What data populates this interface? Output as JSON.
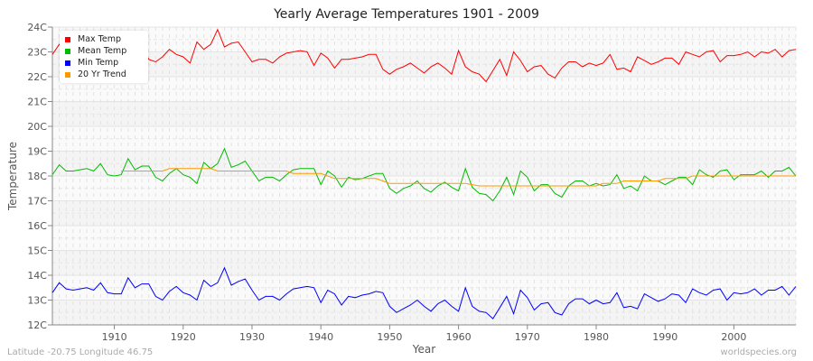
{
  "chart_data": {
    "type": "line",
    "title": "Yearly Average Temperatures 1901 - 2009",
    "xlabel": "Year",
    "ylabel": "Temperature",
    "xlim": [
      1901,
      2009
    ],
    "ylim": [
      12,
      24
    ],
    "x_ticks": [
      1910,
      1920,
      1930,
      1940,
      1950,
      1960,
      1970,
      1980,
      1990,
      2000
    ],
    "y_ticks": [
      "12C",
      "13C",
      "14C",
      "15C",
      "16C",
      "17C",
      "18C",
      "19C",
      "20C",
      "21C",
      "22C",
      "23C",
      "24C"
    ],
    "grid": true,
    "legend_position": "top-left",
    "x_start": 1901,
    "series": [
      {
        "name": "Max Temp",
        "color": "#ff0000",
        "values": [
          22.9,
          23.3,
          23.0,
          23.1,
          22.9,
          23.0,
          23.2,
          22.9,
          23.0,
          22.8,
          23.0,
          23.1,
          23.2,
          23.2,
          22.7,
          22.6,
          22.8,
          23.1,
          22.9,
          22.8,
          22.55,
          23.4,
          23.1,
          23.3,
          23.9,
          23.2,
          23.35,
          23.4,
          23.0,
          22.6,
          22.7,
          22.7,
          22.55,
          22.8,
          22.95,
          23.0,
          23.05,
          23.0,
          22.45,
          22.95,
          22.75,
          22.35,
          22.7,
          22.7,
          22.75,
          22.8,
          22.9,
          22.9,
          22.3,
          22.1,
          22.3,
          22.4,
          22.55,
          22.35,
          22.15,
          22.4,
          22.55,
          22.35,
          22.1,
          23.05,
          22.4,
          22.2,
          22.1,
          21.8,
          22.25,
          22.7,
          22.05,
          23.0,
          22.65,
          22.2,
          22.4,
          22.45,
          22.1,
          21.95,
          22.35,
          22.6,
          22.6,
          22.4,
          22.55,
          22.45,
          22.55,
          22.9,
          22.3,
          22.35,
          22.2,
          22.8,
          22.65,
          22.5,
          22.6,
          22.75,
          22.75,
          22.5,
          23.0,
          22.9,
          22.8,
          23.0,
          23.05,
          22.6,
          22.85,
          22.85,
          22.9,
          23.0,
          22.8,
          23.0,
          22.95,
          23.1,
          22.8,
          23.05,
          23.1
        ]
      },
      {
        "name": "Mean Temp",
        "color": "#00bb00",
        "values": [
          18.05,
          18.45,
          18.2,
          18.2,
          18.25,
          18.3,
          18.2,
          18.5,
          18.05,
          18.0,
          18.05,
          18.7,
          18.25,
          18.4,
          18.4,
          17.95,
          17.8,
          18.1,
          18.3,
          18.05,
          17.95,
          17.7,
          18.55,
          18.3,
          18.5,
          19.1,
          18.35,
          18.45,
          18.6,
          18.2,
          17.8,
          17.95,
          17.95,
          17.8,
          18.05,
          18.25,
          18.3,
          18.3,
          18.3,
          17.65,
          18.2,
          18.0,
          17.55,
          17.95,
          17.85,
          17.9,
          18.0,
          18.1,
          18.1,
          17.5,
          17.3,
          17.5,
          17.6,
          17.8,
          17.5,
          17.35,
          17.6,
          17.75,
          17.55,
          17.4,
          18.3,
          17.55,
          17.3,
          17.25,
          17.0,
          17.4,
          17.95,
          17.25,
          18.2,
          17.95,
          17.4,
          17.65,
          17.65,
          17.3,
          17.15,
          17.6,
          17.8,
          17.8,
          17.6,
          17.7,
          17.6,
          17.65,
          18.05,
          17.5,
          17.6,
          17.4,
          18.0,
          17.8,
          17.8,
          17.65,
          17.8,
          17.95,
          17.95,
          17.65,
          18.25,
          18.05,
          17.95,
          18.2,
          18.25,
          17.85,
          18.05,
          18.05,
          18.05,
          18.2,
          17.95,
          18.2,
          18.2,
          18.35,
          18.0
        ]
      },
      {
        "name": "Min Temp",
        "color": "#0000ff",
        "values": [
          13.3,
          13.7,
          13.45,
          13.4,
          13.45,
          13.5,
          13.4,
          13.7,
          13.3,
          13.25,
          13.25,
          13.9,
          13.5,
          13.65,
          13.65,
          13.15,
          13.0,
          13.35,
          13.55,
          13.3,
          13.2,
          13.0,
          13.8,
          13.55,
          13.7,
          14.3,
          13.6,
          13.75,
          13.85,
          13.4,
          13.0,
          13.15,
          13.15,
          13.0,
          13.25,
          13.45,
          13.5,
          13.55,
          13.5,
          12.9,
          13.4,
          13.25,
          12.8,
          13.15,
          13.1,
          13.2,
          13.25,
          13.35,
          13.3,
          12.75,
          12.5,
          12.65,
          12.8,
          13.0,
          12.75,
          12.55,
          12.85,
          13.0,
          12.75,
          12.55,
          13.5,
          12.75,
          12.55,
          12.5,
          12.25,
          12.7,
          13.15,
          12.45,
          13.4,
          13.1,
          12.6,
          12.85,
          12.9,
          12.5,
          12.4,
          12.85,
          13.05,
          13.05,
          12.85,
          13.0,
          12.85,
          12.9,
          13.3,
          12.7,
          12.75,
          12.65,
          13.25,
          13.1,
          12.95,
          13.05,
          13.25,
          13.2,
          12.9,
          13.45,
          13.3,
          13.2,
          13.4,
          13.45,
          13.0,
          13.3,
          13.25,
          13.3,
          13.45,
          13.2,
          13.4,
          13.4,
          13.55,
          13.2,
          13.55
        ]
      },
      {
        "name": "20 Yr Trend",
        "color": "#ff9900",
        "values": [
          null,
          null,
          null,
          null,
          null,
          null,
          null,
          null,
          null,
          null,
          18.2,
          18.2,
          18.2,
          18.2,
          18.2,
          18.2,
          18.2,
          18.3,
          18.3,
          18.3,
          18.3,
          18.3,
          18.3,
          18.3,
          18.2,
          18.2,
          18.2,
          18.2,
          18.2,
          18.2,
          18.2,
          18.2,
          18.2,
          18.2,
          18.2,
          18.1,
          18.1,
          18.1,
          18.1,
          18.1,
          18.0,
          17.9,
          17.9,
          17.9,
          17.9,
          17.9,
          17.9,
          17.9,
          17.8,
          17.7,
          17.7,
          17.7,
          17.7,
          17.7,
          17.7,
          17.7,
          17.7,
          17.7,
          17.7,
          17.7,
          17.7,
          17.65,
          17.6,
          17.6,
          17.6,
          17.6,
          17.6,
          17.6,
          17.6,
          17.6,
          17.6,
          17.6,
          17.6,
          17.6,
          17.6,
          17.6,
          17.6,
          17.6,
          17.6,
          17.6,
          17.7,
          17.7,
          17.7,
          17.8,
          17.8,
          17.8,
          17.8,
          17.8,
          17.8,
          17.9,
          17.9,
          17.9,
          17.9,
          18.0,
          18.0,
          18.0,
          18.0,
          18.0,
          18.0,
          18.0,
          18.0,
          18.0,
          18.0,
          18.0,
          18.0,
          18.0,
          18.0,
          18.0,
          18.0
        ]
      }
    ]
  },
  "footer": {
    "location": "Latitude -20.75 Longitude 46.75",
    "source": "worldspecies.org"
  }
}
